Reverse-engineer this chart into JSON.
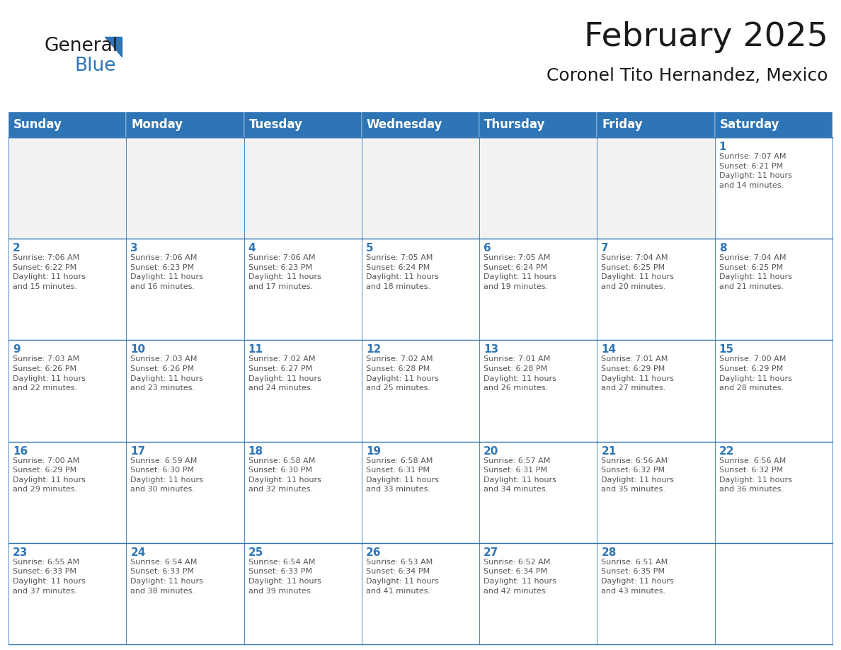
{
  "title": "February 2025",
  "subtitle": "Coronel Tito Hernandez, Mexico",
  "header_color": "#2E75B6",
  "header_text_color": "#FFFFFF",
  "cell_bg_white": "#FFFFFF",
  "cell_bg_gray": "#F2F2F2",
  "cell_border_color": "#2E75B6",
  "day_number_color": "#2E75B6",
  "cell_text_color": "#555555",
  "days_of_week": [
    "Sunday",
    "Monday",
    "Tuesday",
    "Wednesday",
    "Thursday",
    "Friday",
    "Saturday"
  ],
  "weeks": [
    [
      {
        "day": null,
        "info": null
      },
      {
        "day": null,
        "info": null
      },
      {
        "day": null,
        "info": null
      },
      {
        "day": null,
        "info": null
      },
      {
        "day": null,
        "info": null
      },
      {
        "day": null,
        "info": null
      },
      {
        "day": 1,
        "info": "Sunrise: 7:07 AM\nSunset: 6:21 PM\nDaylight: 11 hours\nand 14 minutes."
      }
    ],
    [
      {
        "day": 2,
        "info": "Sunrise: 7:06 AM\nSunset: 6:22 PM\nDaylight: 11 hours\nand 15 minutes."
      },
      {
        "day": 3,
        "info": "Sunrise: 7:06 AM\nSunset: 6:23 PM\nDaylight: 11 hours\nand 16 minutes."
      },
      {
        "day": 4,
        "info": "Sunrise: 7:06 AM\nSunset: 6:23 PM\nDaylight: 11 hours\nand 17 minutes."
      },
      {
        "day": 5,
        "info": "Sunrise: 7:05 AM\nSunset: 6:24 PM\nDaylight: 11 hours\nand 18 minutes."
      },
      {
        "day": 6,
        "info": "Sunrise: 7:05 AM\nSunset: 6:24 PM\nDaylight: 11 hours\nand 19 minutes."
      },
      {
        "day": 7,
        "info": "Sunrise: 7:04 AM\nSunset: 6:25 PM\nDaylight: 11 hours\nand 20 minutes."
      },
      {
        "day": 8,
        "info": "Sunrise: 7:04 AM\nSunset: 6:25 PM\nDaylight: 11 hours\nand 21 minutes."
      }
    ],
    [
      {
        "day": 9,
        "info": "Sunrise: 7:03 AM\nSunset: 6:26 PM\nDaylight: 11 hours\nand 22 minutes."
      },
      {
        "day": 10,
        "info": "Sunrise: 7:03 AM\nSunset: 6:26 PM\nDaylight: 11 hours\nand 23 minutes."
      },
      {
        "day": 11,
        "info": "Sunrise: 7:02 AM\nSunset: 6:27 PM\nDaylight: 11 hours\nand 24 minutes."
      },
      {
        "day": 12,
        "info": "Sunrise: 7:02 AM\nSunset: 6:28 PM\nDaylight: 11 hours\nand 25 minutes."
      },
      {
        "day": 13,
        "info": "Sunrise: 7:01 AM\nSunset: 6:28 PM\nDaylight: 11 hours\nand 26 minutes."
      },
      {
        "day": 14,
        "info": "Sunrise: 7:01 AM\nSunset: 6:29 PM\nDaylight: 11 hours\nand 27 minutes."
      },
      {
        "day": 15,
        "info": "Sunrise: 7:00 AM\nSunset: 6:29 PM\nDaylight: 11 hours\nand 28 minutes."
      }
    ],
    [
      {
        "day": 16,
        "info": "Sunrise: 7:00 AM\nSunset: 6:29 PM\nDaylight: 11 hours\nand 29 minutes."
      },
      {
        "day": 17,
        "info": "Sunrise: 6:59 AM\nSunset: 6:30 PM\nDaylight: 11 hours\nand 30 minutes."
      },
      {
        "day": 18,
        "info": "Sunrise: 6:58 AM\nSunset: 6:30 PM\nDaylight: 11 hours\nand 32 minutes."
      },
      {
        "day": 19,
        "info": "Sunrise: 6:58 AM\nSunset: 6:31 PM\nDaylight: 11 hours\nand 33 minutes."
      },
      {
        "day": 20,
        "info": "Sunrise: 6:57 AM\nSunset: 6:31 PM\nDaylight: 11 hours\nand 34 minutes."
      },
      {
        "day": 21,
        "info": "Sunrise: 6:56 AM\nSunset: 6:32 PM\nDaylight: 11 hours\nand 35 minutes."
      },
      {
        "day": 22,
        "info": "Sunrise: 6:56 AM\nSunset: 6:32 PM\nDaylight: 11 hours\nand 36 minutes."
      }
    ],
    [
      {
        "day": 23,
        "info": "Sunrise: 6:55 AM\nSunset: 6:33 PM\nDaylight: 11 hours\nand 37 minutes."
      },
      {
        "day": 24,
        "info": "Sunrise: 6:54 AM\nSunset: 6:33 PM\nDaylight: 11 hours\nand 38 minutes."
      },
      {
        "day": 25,
        "info": "Sunrise: 6:54 AM\nSunset: 6:33 PM\nDaylight: 11 hours\nand 39 minutes."
      },
      {
        "day": 26,
        "info": "Sunrise: 6:53 AM\nSunset: 6:34 PM\nDaylight: 11 hours\nand 41 minutes."
      },
      {
        "day": 27,
        "info": "Sunrise: 6:52 AM\nSunset: 6:34 PM\nDaylight: 11 hours\nand 42 minutes."
      },
      {
        "day": 28,
        "info": "Sunrise: 6:51 AM\nSunset: 6:35 PM\nDaylight: 11 hours\nand 43 minutes."
      },
      {
        "day": null,
        "info": null
      }
    ]
  ],
  "logo_text_general": "General",
  "logo_text_blue": "Blue",
  "logo_triangle_color": "#2E75B6",
  "title_fontsize": 34,
  "subtitle_fontsize": 18,
  "header_fontsize": 12,
  "day_number_fontsize": 11,
  "cell_info_fontsize": 8,
  "fig_width": 11.88,
  "fig_height": 9.18,
  "background_color": "#FFFFFF"
}
